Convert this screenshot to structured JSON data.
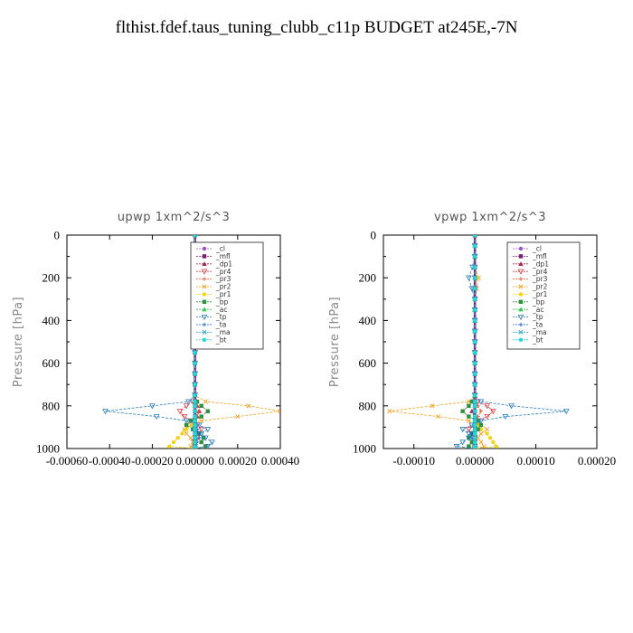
{
  "title": "flthist.fdef.taus_tuning_clubb_c11p  BUDGET at245E,-7N",
  "legend_labels": [
    "_cl",
    "_mfl",
    "_dp1",
    "_pr4",
    "_pr3",
    "_pr2",
    "_pr1",
    "_bp",
    "_ac",
    "_tp",
    "_ta",
    "_ma",
    "_bt"
  ],
  "colors": {
    "_cl": "#9a55c8",
    "_mfl": "#7a1f6e",
    "_dp1": "#b0245a",
    "_pr4": "#e0404a",
    "_pr3": "#e8552c",
    "_pr2": "#f5a020",
    "_pr1": "#f4d21a",
    "_bp": "#2f8f3a",
    "_ac": "#33cc55",
    "_tp": "#2a7fc0",
    "_ta": "#1e60d0",
    "_ma": "#20a8c8",
    "_bt": "#22d8d8"
  },
  "chart_data": [
    {
      "type": "line",
      "title": "upwp   1xm^2/s^3",
      "ylabel": "Pressure [hPa]",
      "xlim": [
        -0.0006,
        0.0004
      ],
      "ylim": [
        1000,
        0
      ],
      "xticks": [
        "-0.00060",
        "-0.00040",
        "-0.00020",
        "0.00000",
        "0.00020",
        "0.00040"
      ],
      "yticks": [
        "0",
        "200",
        "400",
        "600",
        "800",
        "1000"
      ],
      "legend": "top-right",
      "y": [
        0,
        50,
        100,
        150,
        200,
        250,
        300,
        350,
        400,
        450,
        500,
        550,
        600,
        650,
        700,
        750,
        780,
        800,
        825,
        850,
        870,
        890,
        910,
        930,
        950,
        970,
        990,
        1000
      ],
      "series": [
        {
          "name": "_cl",
          "values": [
            0,
            0,
            0,
            0,
            0,
            0,
            0,
            0,
            0,
            0,
            0,
            0,
            0,
            0,
            0,
            0,
            0,
            0,
            0,
            0,
            0,
            0,
            0,
            0,
            0,
            0,
            0,
            0
          ]
        },
        {
          "name": "_mfl",
          "values": [
            0,
            0,
            0,
            0,
            0,
            0,
            0,
            0,
            0,
            0,
            0,
            0,
            0,
            0,
            0,
            0,
            0,
            0,
            0,
            0,
            0,
            0,
            0,
            0,
            0,
            0,
            0,
            0
          ]
        },
        {
          "name": "_dp1",
          "values": [
            0,
            0,
            0,
            0,
            0,
            0,
            0,
            0,
            0,
            0,
            0,
            0,
            0,
            0,
            0,
            0,
            0,
            1e-05,
            2e-05,
            1e-05,
            0,
            0,
            0,
            0,
            0,
            0,
            0,
            0
          ]
        },
        {
          "name": "_pr4",
          "values": [
            0,
            0,
            0,
            0,
            0,
            0,
            0,
            0,
            0,
            0,
            0,
            0,
            0,
            0,
            0,
            0,
            -1e-05,
            -4e-05,
            -7e-05,
            -5e-05,
            -2e-05,
            1e-05,
            3e-05,
            2e-05,
            1e-05,
            0,
            0,
            0
          ]
        },
        {
          "name": "_pr3",
          "values": [
            0,
            0,
            0,
            0,
            0,
            0,
            0,
            0,
            0,
            0,
            0,
            0,
            0,
            0,
            0,
            0,
            0,
            1e-05,
            2e-05,
            1e-05,
            0,
            0,
            0,
            0,
            0,
            0,
            0,
            0
          ]
        },
        {
          "name": "_pr2",
          "values": [
            0,
            0,
            0,
            0,
            -1e-05,
            0,
            0,
            0,
            0,
            0,
            0,
            0,
            0,
            0,
            0,
            0,
            5e-05,
            0.00025,
            0.0004,
            0.0002,
            3e-05,
            -2e-05,
            -5e-05,
            -4e-05,
            -2e-05,
            -1e-05,
            -2e-05,
            0
          ]
        },
        {
          "name": "_pr1",
          "values": [
            0,
            0,
            0,
            0,
            0,
            0,
            0,
            0,
            0,
            0,
            0,
            0,
            0,
            0,
            0,
            0,
            0,
            0,
            0,
            0,
            0,
            -1e-05,
            -4e-05,
            -6e-05,
            -8e-05,
            -0.0001,
            -0.00012,
            0
          ]
        },
        {
          "name": "_bp",
          "values": [
            0,
            0,
            0,
            0,
            0,
            0,
            0,
            0,
            0,
            0,
            0,
            0,
            0,
            0,
            0,
            0,
            1e-05,
            3e-05,
            6e-05,
            3e-05,
            -2e-05,
            -4e-05,
            -1e-05,
            2e-05,
            4e-05,
            3e-05,
            5e-05,
            0
          ]
        },
        {
          "name": "_ac",
          "values": [
            0,
            0,
            0,
            0,
            0,
            0,
            0,
            0,
            0,
            0,
            0,
            0,
            0,
            0,
            0,
            0,
            0,
            0,
            0,
            0,
            0,
            0,
            0,
            0,
            0,
            0,
            0,
            0
          ]
        },
        {
          "name": "_tp",
          "values": [
            0,
            0,
            0,
            0,
            0,
            0,
            0,
            0,
            0,
            0,
            0,
            0,
            0,
            0,
            0,
            0,
            -3e-05,
            -0.0002,
            -0.00042,
            -0.00018,
            -4e-05,
            2e-05,
            6e-05,
            3e-05,
            5e-05,
            8e-05,
            6e-05,
            0
          ]
        },
        {
          "name": "_ta",
          "values": [
            0,
            0,
            0,
            0,
            0,
            0,
            0,
            0,
            0,
            0,
            0,
            0,
            0,
            0,
            0,
            0,
            0,
            0,
            0,
            0,
            0,
            0,
            1e-05,
            2e-05,
            2e-05,
            1e-05,
            0,
            0
          ]
        },
        {
          "name": "_ma",
          "values": [
            0,
            0,
            0,
            0,
            0,
            0,
            0,
            0,
            0,
            0,
            0,
            0,
            0,
            0,
            0,
            0,
            0,
            0,
            0,
            0,
            0,
            0,
            0,
            0,
            0,
            0,
            0,
            0
          ]
        },
        {
          "name": "_bt",
          "values": [
            0,
            0,
            0,
            0,
            0,
            0,
            0,
            0,
            0,
            0,
            0,
            0,
            0,
            0,
            0,
            0,
            0,
            0,
            0,
            0,
            0,
            0,
            0,
            0,
            0,
            0,
            0,
            0
          ]
        }
      ]
    },
    {
      "type": "line",
      "title": "vpwp   1xm^2/s^3",
      "ylabel": "Pressure [hPa]",
      "xlim": [
        -0.00015,
        0.0002
      ],
      "ylim": [
        1000,
        0
      ],
      "xticks": [
        "-0.00010",
        "0.00000",
        "0.00010",
        "0.00020"
      ],
      "xtick_values": [
        -0.0001,
        0,
        0.0001,
        0.0002
      ],
      "yticks": [
        "0",
        "200",
        "400",
        "600",
        "800",
        "1000"
      ],
      "legend": "top-right",
      "y": [
        0,
        50,
        100,
        150,
        200,
        250,
        300,
        350,
        400,
        450,
        500,
        550,
        600,
        650,
        700,
        750,
        780,
        800,
        825,
        850,
        870,
        890,
        910,
        930,
        950,
        970,
        990,
        1000
      ],
      "series": [
        {
          "name": "_cl",
          "values": [
            0,
            0,
            0,
            0,
            0,
            0,
            0,
            0,
            0,
            0,
            0,
            0,
            0,
            0,
            0,
            0,
            0,
            0,
            0,
            0,
            0,
            0,
            0,
            0,
            0,
            0,
            0,
            0
          ]
        },
        {
          "name": "_mfl",
          "values": [
            0,
            0,
            0,
            0,
            0,
            0,
            0,
            0,
            0,
            0,
            0,
            0,
            0,
            0,
            0,
            0,
            0,
            0,
            0,
            0,
            0,
            0,
            0,
            0,
            0,
            0,
            0,
            0
          ]
        },
        {
          "name": "_dp1",
          "values": [
            0,
            0,
            0,
            0,
            0,
            0,
            0,
            0,
            0,
            0,
            0,
            0,
            0,
            0,
            0,
            0,
            0,
            0,
            -5e-06,
            0,
            0,
            0,
            0,
            0,
            0,
            0,
            0,
            0
          ]
        },
        {
          "name": "_pr4",
          "values": [
            0,
            0,
            0,
            0,
            0,
            0,
            0,
            0,
            0,
            0,
            0,
            0,
            0,
            0,
            0,
            0,
            5e-06,
            2e-05,
            3e-05,
            2e-05,
            5e-06,
            -5e-06,
            -1e-05,
            -5e-06,
            0,
            0,
            0,
            0
          ]
        },
        {
          "name": "_pr3",
          "values": [
            0,
            0,
            0,
            0,
            0,
            0,
            0,
            0,
            0,
            0,
            0,
            0,
            0,
            0,
            0,
            0,
            0,
            5e-06,
            1e-05,
            5e-06,
            0,
            0,
            0,
            0,
            0,
            0,
            0,
            0
          ]
        },
        {
          "name": "_pr2",
          "values": [
            0,
            0,
            0,
            0,
            6e-06,
            3e-06,
            0,
            0,
            0,
            0,
            0,
            0,
            0,
            0,
            0,
            0,
            -1e-05,
            -7e-05,
            -0.00014,
            -6e-05,
            -1e-05,
            1e-05,
            2e-05,
            1e-05,
            5e-06,
            1e-05,
            1.5e-05,
            0
          ]
        },
        {
          "name": "_pr1",
          "values": [
            0,
            0,
            0,
            0,
            3e-06,
            0,
            0,
            0,
            0,
            0,
            0,
            0,
            0,
            0,
            0,
            0,
            0,
            0,
            0,
            0,
            0,
            5e-06,
            1e-05,
            2e-05,
            2.5e-05,
            3e-05,
            3.5e-05,
            0
          ]
        },
        {
          "name": "_bp",
          "values": [
            0,
            0,
            0,
            0,
            0,
            0,
            0,
            0,
            0,
            0,
            0,
            0,
            0,
            0,
            0,
            0,
            -5e-06,
            -1e-05,
            -2e-05,
            -1e-05,
            5e-06,
            1e-05,
            5e-06,
            -5e-06,
            -1e-05,
            -5e-06,
            -1e-05,
            0
          ]
        },
        {
          "name": "_ac",
          "values": [
            0,
            0,
            0,
            0,
            0,
            0,
            0,
            0,
            0,
            0,
            0,
            0,
            0,
            0,
            0,
            0,
            0,
            0,
            0,
            0,
            0,
            0,
            0,
            0,
            0,
            0,
            0,
            0
          ]
        },
        {
          "name": "_tp",
          "values": [
            0,
            0,
            0,
            -4e-06,
            -1e-05,
            -5e-06,
            0,
            0,
            0,
            0,
            0,
            0,
            0,
            0,
            0,
            0,
            1e-05,
            6e-05,
            0.00015,
            5e-05,
            1e-05,
            -5e-06,
            -2e-05,
            -1e-05,
            -1e-05,
            -2e-05,
            -3e-05,
            0
          ]
        },
        {
          "name": "_ta",
          "values": [
            0,
            0,
            0,
            0,
            0,
            0,
            0,
            0,
            0,
            0,
            0,
            0,
            0,
            0,
            0,
            0,
            0,
            0,
            0,
            0,
            0,
            0,
            0,
            -5e-06,
            -5e-06,
            0,
            0,
            0
          ]
        },
        {
          "name": "_ma",
          "values": [
            0,
            0,
            0,
            0,
            0,
            0,
            0,
            0,
            0,
            0,
            0,
            0,
            0,
            0,
            0,
            0,
            0,
            0,
            0,
            0,
            0,
            0,
            0,
            0,
            0,
            0,
            0,
            0
          ]
        },
        {
          "name": "_bt",
          "values": [
            0,
            0,
            0,
            0,
            0,
            0,
            0,
            0,
            0,
            0,
            0,
            0,
            0,
            0,
            0,
            0,
            0,
            0,
            0,
            0,
            0,
            0,
            0,
            0,
            0,
            0,
            0,
            0
          ]
        }
      ]
    }
  ]
}
